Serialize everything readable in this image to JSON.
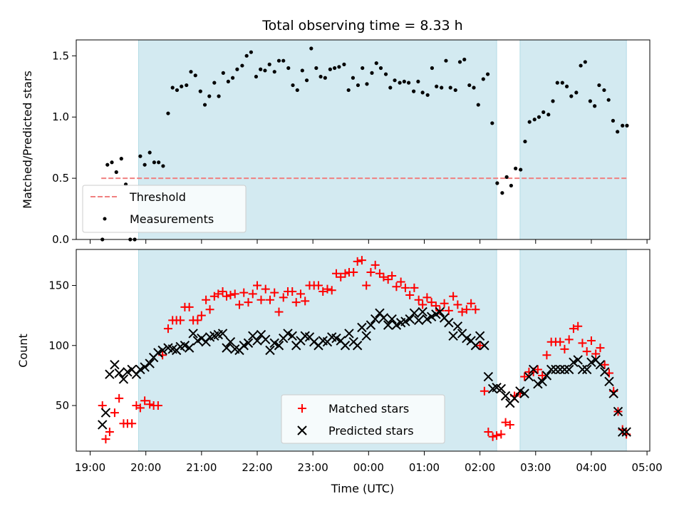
{
  "chart_data": [
    {
      "type": "scatter",
      "title": "Total observing time = 8.33 h",
      "xlabel": "",
      "ylabel": "Matched/Predicted stars",
      "ylim": [
        0,
        1.63
      ],
      "yticks": [
        "0.0",
        "0.5",
        "1.0",
        "1.5"
      ],
      "ytick_values": [
        0,
        0.5,
        1.0,
        1.5
      ],
      "xlim": [
        18.75,
        29.05
      ],
      "shaded_intervals": [
        [
          19.87,
          26.3
        ],
        [
          26.72,
          28.63
        ]
      ],
      "shade_color": "#d3eaf1",
      "legend_position": "lower-left",
      "legend": [
        {
          "label": "Threshold",
          "marker": "dashed-line",
          "color": "#f08080"
        },
        {
          "label": "Measurements",
          "marker": "dot",
          "color": "#000000"
        }
      ],
      "threshold": {
        "name": "Threshold",
        "y": 0.5,
        "x_range": [
          19.2,
          28.63
        ],
        "color": "#f08080"
      },
      "series": [
        {
          "name": "Measurements",
          "color": "#000000",
          "x": [
            19.22,
            19.31,
            19.39,
            19.47,
            19.56,
            19.64,
            19.72,
            19.8,
            19.9,
            19.98,
            20.07,
            20.15,
            20.23,
            20.31,
            20.4,
            20.48,
            20.56,
            20.64,
            20.73,
            20.81,
            20.89,
            20.98,
            21.06,
            21.14,
            21.23,
            21.31,
            21.39,
            21.48,
            21.56,
            21.64,
            21.73,
            21.81,
            21.89,
            21.98,
            22.06,
            22.14,
            22.22,
            22.31,
            22.39,
            22.47,
            22.56,
            22.64,
            22.72,
            22.81,
            22.89,
            22.97,
            23.06,
            23.14,
            23.22,
            23.31,
            23.39,
            23.47,
            23.56,
            23.64,
            23.72,
            23.81,
            23.89,
            23.97,
            24.06,
            24.14,
            24.22,
            24.31,
            24.39,
            24.47,
            24.56,
            24.64,
            24.72,
            24.81,
            24.89,
            24.97,
            25.06,
            25.14,
            25.22,
            25.31,
            25.39,
            25.47,
            25.56,
            25.64,
            25.72,
            25.81,
            25.89,
            25.97,
            26.06,
            26.14,
            26.22,
            26.31,
            26.4,
            26.48,
            26.56,
            26.64,
            26.73,
            26.81,
            26.89,
            26.98,
            27.06,
            27.14,
            27.23,
            27.31,
            27.39,
            27.48,
            27.56,
            27.64,
            27.73,
            27.81,
            27.89,
            27.98,
            28.06,
            28.14,
            28.23,
            28.31,
            28.39,
            28.47,
            28.56,
            28.64
          ],
          "y": [
            0.0,
            0.61,
            0.63,
            0.55,
            0.66,
            0.45,
            0.0,
            0.0,
            0.68,
            0.61,
            0.71,
            0.63,
            0.63,
            0.6,
            1.03,
            1.24,
            1.22,
            1.25,
            1.26,
            1.37,
            1.34,
            1.21,
            1.1,
            1.17,
            1.28,
            1.17,
            1.36,
            1.29,
            1.32,
            1.39,
            1.42,
            1.5,
            1.53,
            1.33,
            1.39,
            1.38,
            1.43,
            1.37,
            1.46,
            1.46,
            1.4,
            1.26,
            1.22,
            1.38,
            1.3,
            1.56,
            1.4,
            1.33,
            1.32,
            1.39,
            1.4,
            1.41,
            1.43,
            1.22,
            1.32,
            1.26,
            1.4,
            1.27,
            1.36,
            1.44,
            1.4,
            1.35,
            1.24,
            1.3,
            1.28,
            1.29,
            1.28,
            1.21,
            1.29,
            1.2,
            1.18,
            1.4,
            1.25,
            1.24,
            1.46,
            1.24,
            1.22,
            1.45,
            1.47,
            1.26,
            1.24,
            1.1,
            1.31,
            1.35,
            0.95,
            0.46,
            0.38,
            0.51,
            0.44,
            0.58,
            0.57,
            0.8,
            0.96,
            0.98,
            1.0,
            1.04,
            1.02,
            1.13,
            1.28,
            1.28,
            1.25,
            1.17,
            1.2,
            1.42,
            1.45,
            1.13,
            1.09,
            1.26,
            1.22,
            1.14,
            0.97,
            0.88,
            0.93,
            0.93
          ]
        }
      ]
    },
    {
      "type": "scatter",
      "title": "",
      "xlabel": "Time (UTC)",
      "ylabel": "Count",
      "ylim": [
        12,
        180
      ],
      "yticks": [
        "50",
        "100",
        "150"
      ],
      "ytick_values": [
        50,
        100,
        150
      ],
      "xlim": [
        18.75,
        29.05
      ],
      "xtick_values": [
        19,
        20,
        21,
        22,
        23,
        24,
        25,
        26,
        27,
        28,
        29
      ],
      "xticks": [
        "19:00",
        "20:00",
        "21:00",
        "22:00",
        "23:00",
        "00:00",
        "01:00",
        "02:00",
        "03:00",
        "04:00",
        "05:00"
      ],
      "shaded_intervals": [
        [
          19.87,
          26.3
        ],
        [
          26.72,
          28.63
        ]
      ],
      "shade_color": "#d3eaf1",
      "legend_position": "lower-center",
      "legend": [
        {
          "label": "Matched stars",
          "marker": "plus",
          "color": "#ff0000"
        },
        {
          "label": "Predicted stars",
          "marker": "x",
          "color": "#000000"
        }
      ],
      "series": [
        {
          "name": "Matched stars",
          "color": "#ff0000",
          "marker": "plus",
          "x": [
            19.22,
            19.28,
            19.35,
            19.44,
            19.52,
            19.6,
            19.67,
            19.75,
            19.83,
            19.9,
            19.98,
            20.07,
            20.14,
            20.22,
            20.3,
            20.4,
            20.48,
            20.55,
            20.62,
            20.7,
            20.78,
            20.85,
            20.93,
            21.0,
            21.08,
            21.15,
            21.23,
            21.3,
            21.38,
            21.45,
            21.52,
            21.6,
            21.68,
            21.76,
            21.84,
            21.92,
            22.0,
            22.07,
            22.15,
            22.23,
            22.31,
            22.39,
            22.47,
            22.55,
            22.63,
            22.7,
            22.78,
            22.86,
            22.94,
            23.02,
            23.1,
            23.18,
            23.26,
            23.34,
            23.42,
            23.5,
            23.58,
            23.65,
            23.73,
            23.8,
            23.88,
            23.96,
            24.04,
            24.12,
            24.2,
            24.27,
            24.35,
            24.42,
            24.5,
            24.58,
            24.66,
            24.74,
            24.82,
            24.9,
            24.97,
            25.05,
            25.13,
            25.21,
            25.28,
            25.36,
            25.44,
            25.52,
            25.6,
            25.68,
            25.76,
            25.84,
            25.92,
            26.0,
            26.08,
            26.15,
            26.23,
            26.3,
            26.38,
            26.46,
            26.54,
            26.62,
            26.72,
            26.8,
            26.88,
            26.96,
            27.04,
            27.12,
            27.2,
            27.28,
            27.36,
            27.44,
            27.52,
            27.6,
            27.68,
            27.76,
            27.84,
            27.92,
            28.0,
            28.08,
            28.16,
            28.24,
            28.32,
            28.4,
            28.48,
            28.56,
            28.63
          ],
          "y": [
            50,
            22,
            28,
            44,
            56,
            35,
            35,
            35,
            50,
            48,
            54,
            51,
            50,
            50,
            92,
            114,
            121,
            121,
            121,
            132,
            132,
            121,
            121,
            125,
            138,
            130,
            141,
            143,
            145,
            141,
            142,
            143,
            134,
            144,
            136,
            143,
            150,
            138,
            147,
            138,
            144,
            128,
            140,
            145,
            145,
            136,
            143,
            137,
            150,
            150,
            150,
            145,
            147,
            146,
            160,
            157,
            160,
            161,
            161,
            170,
            171,
            150,
            161,
            167,
            160,
            157,
            155,
            158,
            149,
            153,
            148,
            142,
            148,
            138,
            134,
            140,
            136,
            133,
            129,
            135,
            129,
            141,
            134,
            128,
            130,
            135,
            130,
            100,
            62,
            28,
            24,
            25,
            26,
            36,
            34,
            58,
            60,
            74,
            78,
            78,
            80,
            75,
            92,
            103,
            103,
            103,
            97,
            105,
            114,
            116,
            102,
            95,
            104,
            93,
            98,
            84,
            77,
            62,
            45,
            30,
            26
          ]
        },
        {
          "name": "Predicted stars",
          "color": "#000000",
          "marker": "x",
          "x": [
            19.22,
            19.28,
            19.35,
            19.44,
            19.52,
            19.6,
            19.67,
            19.75,
            19.83,
            19.9,
            19.98,
            20.07,
            20.14,
            20.22,
            20.3,
            20.4,
            20.48,
            20.55,
            20.62,
            20.7,
            20.78,
            20.85,
            20.93,
            21.0,
            21.08,
            21.15,
            21.23,
            21.3,
            21.38,
            21.45,
            21.52,
            21.6,
            21.68,
            21.76,
            21.84,
            21.92,
            22.0,
            22.07,
            22.15,
            22.23,
            22.31,
            22.39,
            22.47,
            22.55,
            22.63,
            22.7,
            22.78,
            22.86,
            22.94,
            23.02,
            23.1,
            23.18,
            23.26,
            23.34,
            23.42,
            23.5,
            23.58,
            23.65,
            23.73,
            23.8,
            23.88,
            23.96,
            24.04,
            24.12,
            24.2,
            24.27,
            24.35,
            24.42,
            24.5,
            24.58,
            24.66,
            24.74,
            24.82,
            24.9,
            24.97,
            25.05,
            25.13,
            25.21,
            25.28,
            25.36,
            25.44,
            25.52,
            25.6,
            25.68,
            25.76,
            25.84,
            25.92,
            26.0,
            26.08,
            26.15,
            26.23,
            26.3,
            26.38,
            26.46,
            26.54,
            26.62,
            26.72,
            26.8,
            26.88,
            26.96,
            27.04,
            27.12,
            27.2,
            27.28,
            27.36,
            27.44,
            27.52,
            27.6,
            27.68,
            27.76,
            27.84,
            27.92,
            28.0,
            28.08,
            28.16,
            28.24,
            28.32,
            28.4,
            28.48,
            28.56,
            28.63
          ],
          "y": [
            34,
            44,
            76,
            84,
            77,
            72,
            78,
            80,
            76,
            80,
            82,
            85,
            90,
            94,
            96,
            98,
            97,
            96,
            99,
            100,
            98,
            110,
            104,
            106,
            103,
            107,
            108,
            109,
            110,
            98,
            103,
            97,
            96,
            100,
            102,
            108,
            104,
            109,
            105,
            96,
            102,
            100,
            106,
            110,
            108,
            100,
            104,
            108,
            107,
            103,
            100,
            104,
            103,
            107,
            106,
            104,
            100,
            110,
            103,
            100,
            115,
            108,
            117,
            122,
            127,
            123,
            117,
            122,
            117,
            119,
            120,
            122,
            127,
            121,
            128,
            122,
            124,
            126,
            128,
            123,
            119,
            108,
            116,
            110,
            106,
            104,
            100,
            108,
            100,
            74,
            64,
            65,
            64,
            58,
            52,
            56,
            62,
            60,
            74,
            80,
            68,
            70,
            75,
            80,
            80,
            80,
            80,
            80,
            86,
            88,
            80,
            80,
            86,
            88,
            84,
            78,
            70,
            60,
            45,
            28,
            28
          ]
        }
      ]
    }
  ]
}
